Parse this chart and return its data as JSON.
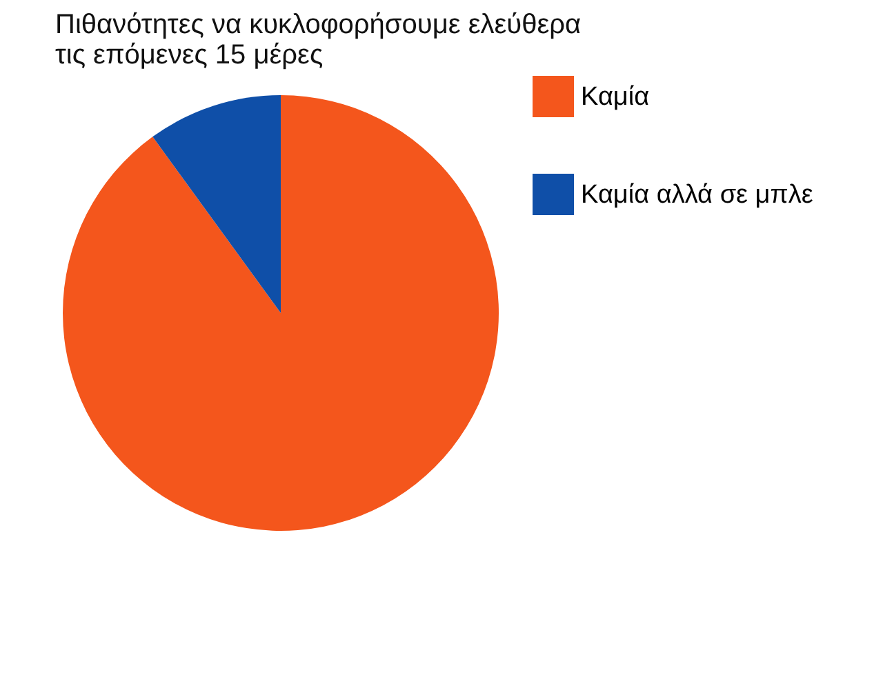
{
  "chart_data": {
    "type": "pie",
    "title": "Πιθανότητες να κυκλοφορήσουμε ελεύθερα τις επόμενες 15 μέρες",
    "categories": [
      "Καμία",
      "Καμία αλλά σε μπλε"
    ],
    "values": [
      90,
      10
    ],
    "colors": [
      "#f4561c",
      "#0f4fa8"
    ],
    "legend": "right"
  }
}
